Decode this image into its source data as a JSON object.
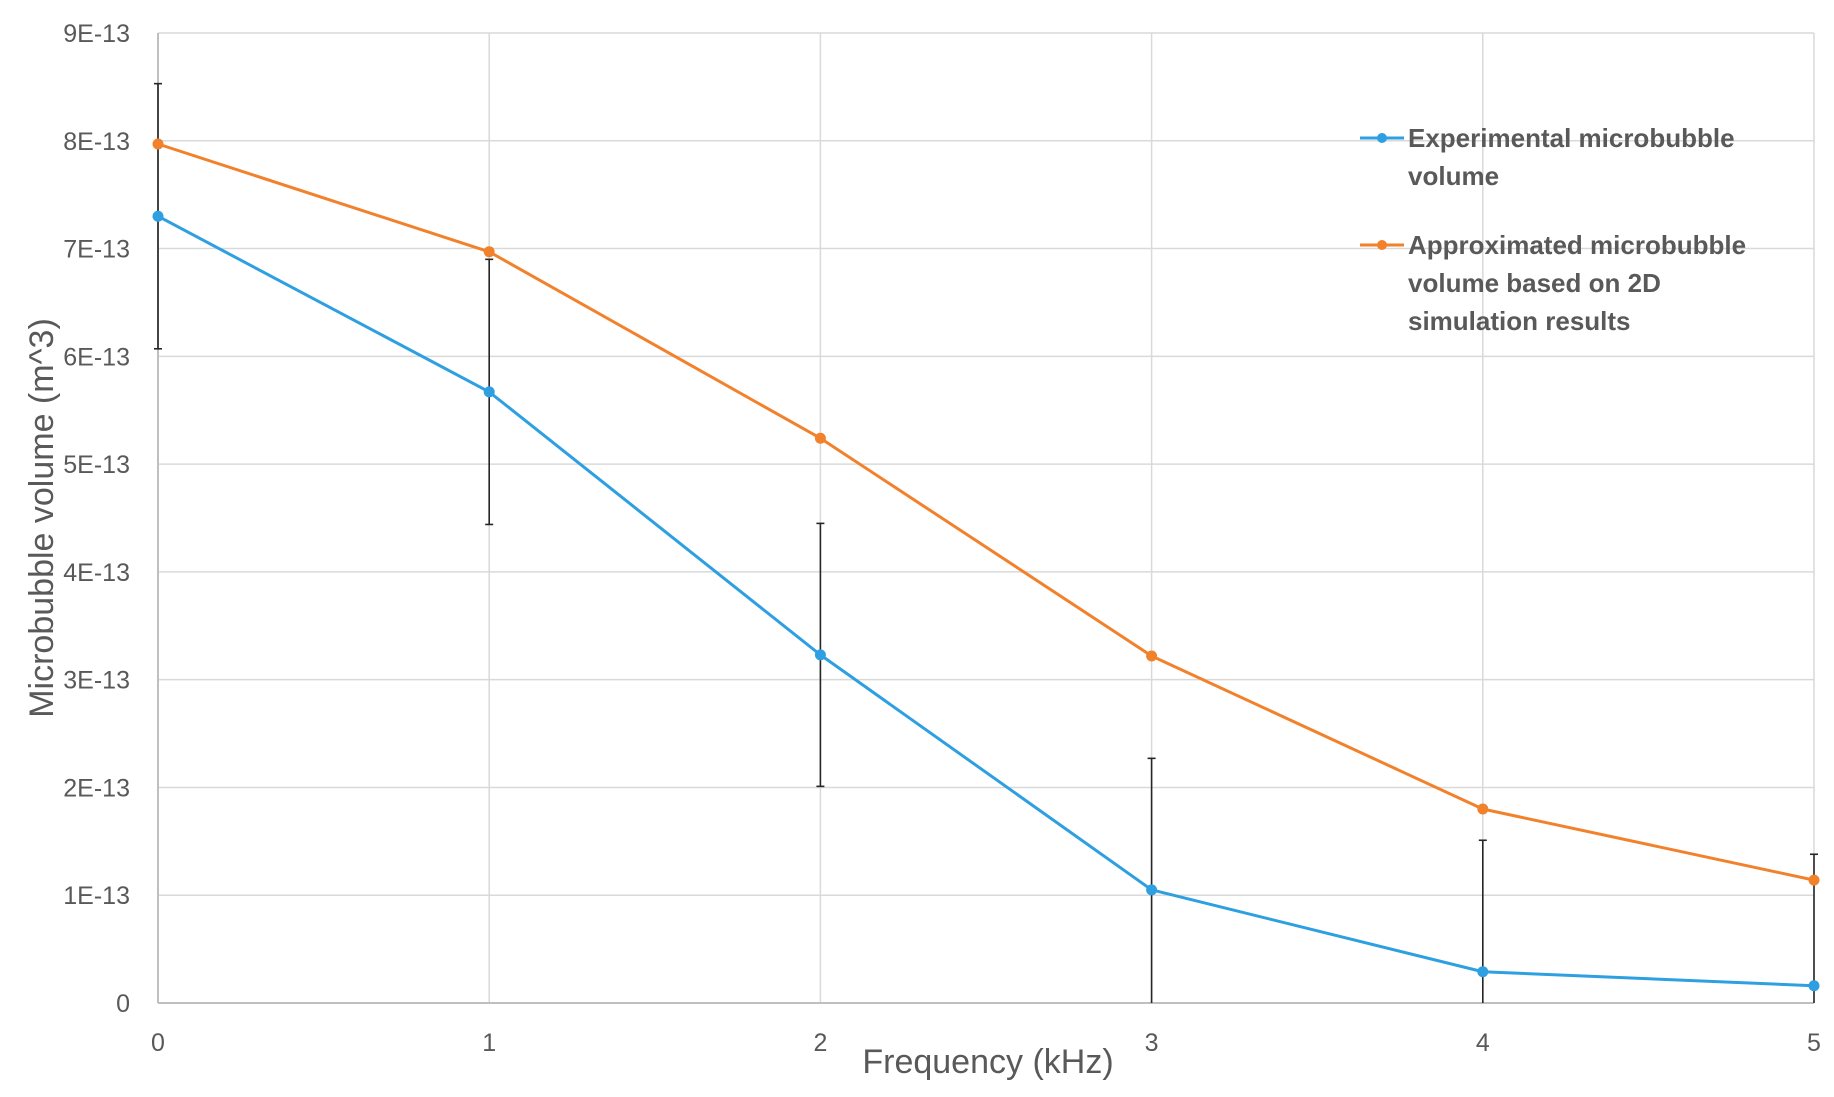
{
  "chart_data": {
    "type": "line",
    "title": "",
    "xlabel": "Frequency (kHz)",
    "ylabel": "Microbubble volume (m^3)",
    "x": [
      0,
      1,
      2,
      3,
      4,
      5
    ],
    "x_tick_labels": [
      "0",
      "1",
      "2",
      "3",
      "4",
      "5"
    ],
    "y_tick_values": [
      0,
      1e-13,
      2e-13,
      3e-13,
      4e-13,
      5e-13,
      6e-13,
      7e-13,
      8e-13,
      9e-13
    ],
    "y_tick_labels": [
      "0",
      "1E-13",
      "2E-13",
      "3E-13",
      "4E-13",
      "5E-13",
      "6E-13",
      "7E-13",
      "8E-13",
      "9E-13"
    ],
    "xlim": [
      0,
      5
    ],
    "ylim": [
      0,
      9e-13
    ],
    "grid": true,
    "legend_position": "right",
    "series": [
      {
        "name": "Experimental microbubble volume",
        "legend_lines": [
          "Experimental microbubble",
          "volume"
        ],
        "color": "#2e9fe0",
        "values": [
          7.3e-13,
          5.67e-13,
          3.23e-13,
          1.05e-13,
          2.9e-14,
          1.6e-14
        ],
        "error": [
          1.23e-13,
          1.23e-13,
          1.22e-13,
          1.22e-13,
          1.22e-13,
          1.22e-13
        ]
      },
      {
        "name": "Approximated microbubble volume based on 2D simulation results",
        "legend_lines": [
          "Approximated microbubble",
          "volume based on 2D",
          "simulation results"
        ],
        "color": "#f2812c",
        "values": [
          7.97e-13,
          6.97e-13,
          5.24e-13,
          3.22e-13,
          1.8e-13,
          1.14e-13
        ]
      }
    ]
  }
}
